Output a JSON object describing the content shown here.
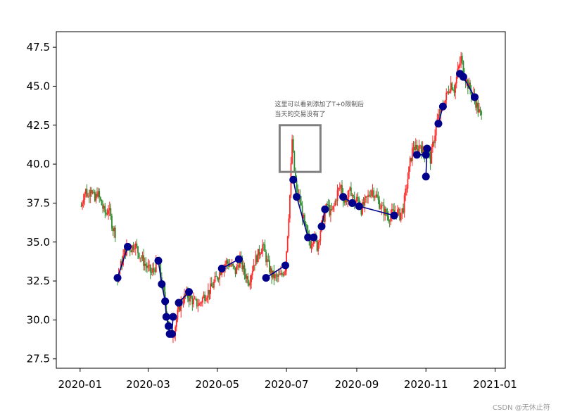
{
  "chart_data": {
    "type": "line",
    "title": "",
    "xlabel": "",
    "ylabel": "",
    "x_ticks": [
      "2020-01",
      "2020-03",
      "2020-05",
      "2020-07",
      "2020-09",
      "2020-11",
      "2021-01"
    ],
    "y_ticks": [
      27.5,
      30.0,
      32.5,
      35.0,
      37.5,
      40.0,
      42.5,
      45.0,
      47.5
    ],
    "xlim": [
      "2019-12-11",
      "2021-01-10"
    ],
    "ylim": [
      26.9,
      48.5
    ],
    "grid": false,
    "price_series": [
      {
        "segment": [
          [
            "2020-01-02",
            37.3
          ],
          [
            "2020-01-04",
            38.0
          ],
          [
            "2020-01-06",
            38.3
          ],
          [
            "2020-01-08",
            37.9
          ],
          [
            "2020-01-10",
            38.6
          ],
          [
            "2020-01-12",
            38.1
          ],
          [
            "2020-01-14",
            37.6
          ],
          [
            "2020-01-16",
            38.2
          ],
          [
            "2020-01-18",
            37.8
          ],
          [
            "2020-01-20",
            37.4
          ],
          [
            "2020-01-22",
            37.0
          ],
          [
            "2020-01-24",
            36.8
          ],
          [
            "2020-01-26",
            37.2
          ],
          [
            "2020-01-28",
            36.5
          ],
          [
            "2020-01-30",
            35.9
          ],
          [
            "2020-02-01",
            35.6
          ]
        ]
      },
      {
        "segment": [
          [
            "2020-02-03",
            32.7
          ],
          [
            "2020-02-06",
            33.5
          ],
          [
            "2020-02-09",
            34.3
          ],
          [
            "2020-02-12",
            34.7
          ],
          [
            "2020-02-15",
            34.6
          ],
          [
            "2020-02-18",
            34.9
          ],
          [
            "2020-02-21",
            34.4
          ],
          [
            "2020-02-24",
            34.0
          ],
          [
            "2020-02-27",
            33.6
          ],
          [
            "2020-03-01",
            33.3
          ],
          [
            "2020-03-04",
            33.0
          ],
          [
            "2020-03-07",
            33.4
          ],
          [
            "2020-03-10",
            33.8
          ],
          [
            "2020-03-13",
            32.3
          ],
          [
            "2020-03-16",
            31.2
          ],
          [
            "2020-03-18",
            30.1
          ],
          [
            "2020-03-20",
            29.5
          ],
          [
            "2020-03-22",
            29.1
          ],
          [
            "2020-03-24",
            29.3
          ],
          [
            "2020-03-27",
            30.4
          ],
          [
            "2020-03-30",
            31.1
          ],
          [
            "2020-04-03",
            31.6
          ],
          [
            "2020-04-07",
            31.4
          ],
          [
            "2020-04-11",
            31.1
          ],
          [
            "2020-04-15",
            31.0
          ],
          [
            "2020-04-19",
            31.5
          ],
          [
            "2020-04-23",
            31.8
          ],
          [
            "2020-04-27",
            32.2
          ],
          [
            "2020-05-01",
            32.8
          ],
          [
            "2020-05-05",
            33.3
          ],
          [
            "2020-05-09",
            33.7
          ],
          [
            "2020-05-13",
            33.5
          ],
          [
            "2020-05-17",
            33.1
          ],
          [
            "2020-05-21",
            33.9
          ],
          [
            "2020-05-25",
            33.0
          ],
          [
            "2020-05-29",
            32.5
          ],
          [
            "2020-06-02",
            33.6
          ],
          [
            "2020-06-06",
            34.2
          ],
          [
            "2020-06-10",
            34.8
          ],
          [
            "2020-06-14",
            33.7
          ],
          [
            "2020-06-18",
            32.9
          ],
          [
            "2020-06-22",
            32.7
          ],
          [
            "2020-06-26",
            32.8
          ],
          [
            "2020-06-30",
            33.4
          ],
          [
            "2020-07-02",
            35.6
          ],
          [
            "2020-07-04",
            38.0
          ],
          [
            "2020-07-06",
            41.6
          ],
          [
            "2020-07-08",
            39.5
          ],
          [
            "2020-07-10",
            38.2
          ],
          [
            "2020-07-13",
            37.6
          ],
          [
            "2020-07-16",
            36.4
          ],
          [
            "2020-07-19",
            35.5
          ],
          [
            "2020-07-22",
            34.9
          ],
          [
            "2020-07-25",
            35.4
          ],
          [
            "2020-07-28",
            34.7
          ],
          [
            "2020-07-31",
            35.8
          ],
          [
            "2020-08-03",
            36.6
          ],
          [
            "2020-08-06",
            37.4
          ],
          [
            "2020-08-09",
            36.8
          ],
          [
            "2020-08-12",
            37.3
          ],
          [
            "2020-08-15",
            38.2
          ],
          [
            "2020-08-18",
            38.6
          ],
          [
            "2020-08-21",
            37.6
          ],
          [
            "2020-08-24",
            37.9
          ],
          [
            "2020-08-27",
            38.3
          ],
          [
            "2020-08-30",
            37.5
          ],
          [
            "2020-09-02",
            37.8
          ],
          [
            "2020-09-05",
            37.1
          ],
          [
            "2020-09-08",
            37.5
          ],
          [
            "2020-09-11",
            37.9
          ],
          [
            "2020-09-14",
            38.4
          ],
          [
            "2020-09-17",
            38.1
          ],
          [
            "2020-09-20",
            37.6
          ],
          [
            "2020-09-23",
            37.2
          ],
          [
            "2020-09-26",
            36.9
          ],
          [
            "2020-09-29",
            36.6
          ],
          [
            "2020-10-02",
            36.8
          ],
          [
            "2020-10-06",
            37.0
          ],
          [
            "2020-10-09",
            36.7
          ],
          [
            "2020-10-12",
            37.2
          ],
          [
            "2020-10-15",
            38.6
          ],
          [
            "2020-10-18",
            40.1
          ],
          [
            "2020-10-21",
            41.2
          ],
          [
            "2020-10-24",
            40.8
          ],
          [
            "2020-10-27",
            41.3
          ],
          [
            "2020-10-30",
            40.6
          ],
          [
            "2020-11-02",
            41.1
          ],
          [
            "2020-11-05",
            40.3
          ],
          [
            "2020-11-08",
            41.6
          ],
          [
            "2020-11-11",
            42.8
          ],
          [
            "2020-11-14",
            43.4
          ],
          [
            "2020-11-17",
            43.9
          ],
          [
            "2020-11-20",
            44.6
          ],
          [
            "2020-11-23",
            45.2
          ],
          [
            "2020-11-26",
            44.8
          ],
          [
            "2020-11-29",
            45.9
          ],
          [
            "2020-12-02",
            46.8
          ],
          [
            "2020-12-05",
            45.7
          ],
          [
            "2020-12-08",
            45.1
          ],
          [
            "2020-12-11",
            44.6
          ],
          [
            "2020-12-14",
            44.2
          ],
          [
            "2020-12-17",
            43.5
          ],
          [
            "2020-12-20",
            43.0
          ]
        ]
      }
    ],
    "trade_markers": [
      {
        "path": [
          [
            "2020-02-03",
            32.7
          ],
          [
            "2020-02-12",
            34.7
          ]
        ]
      },
      {
        "path": [
          [
            "2020-03-10",
            33.8
          ],
          [
            "2020-03-13",
            32.3
          ],
          [
            "2020-03-16",
            31.2
          ],
          [
            "2020-03-17",
            30.2
          ],
          [
            "2020-03-19",
            29.6
          ],
          [
            "2020-03-20",
            29.1
          ],
          [
            "2020-03-22",
            29.1
          ],
          [
            "2020-03-23",
            30.2
          ]
        ]
      },
      {
        "path": [
          [
            "2020-03-28",
            31.1
          ],
          [
            "2020-04-06",
            31.8
          ]
        ]
      },
      {
        "path": [
          [
            "2020-05-05",
            33.3
          ],
          [
            "2020-05-20",
            33.9
          ]
        ]
      },
      {
        "path": [
          [
            "2020-06-13",
            32.7
          ],
          [
            "2020-06-30",
            33.5
          ]
        ]
      },
      {
        "path": [
          [
            "2020-07-07",
            39.0
          ],
          [
            "2020-07-10",
            37.9
          ],
          [
            "2020-07-20",
            35.3
          ],
          [
            "2020-07-25",
            35.3
          ]
        ]
      },
      {
        "path": [
          [
            "2020-08-01",
            36.0
          ],
          [
            "2020-08-04",
            37.1
          ]
        ]
      },
      {
        "path": [
          [
            "2020-08-20",
            37.9
          ],
          [
            "2020-08-28",
            37.5
          ],
          [
            "2020-09-03",
            37.3
          ],
          [
            "2020-10-04",
            36.7
          ]
        ]
      },
      {
        "path": [
          [
            "2020-10-24",
            40.6
          ],
          [
            "2020-11-01",
            40.6
          ],
          [
            "2020-11-02",
            41.0
          ],
          [
            "2020-11-01",
            39.2
          ]
        ]
      },
      {
        "path": [
          [
            "2020-11-12",
            42.6
          ],
          [
            "2020-11-16",
            43.7
          ]
        ]
      },
      {
        "path": [
          [
            "2020-12-01",
            45.8
          ],
          [
            "2020-12-04",
            45.6
          ],
          [
            "2020-12-14",
            44.3
          ]
        ]
      }
    ],
    "annotation": {
      "lines": [
        "这里可以看到添加了T+0限制后",
        "当天的交易没有了"
      ],
      "box": {
        "x_from": "2020-06-25",
        "x_to": "2020-07-31",
        "y_from": 39.5,
        "y_to": 42.5
      }
    },
    "colors": {
      "up": "#ff2a2a",
      "down": "#2e8b2e",
      "trades": "#00008b",
      "box": "#808080"
    }
  },
  "watermark": "CSDN @无休止符"
}
